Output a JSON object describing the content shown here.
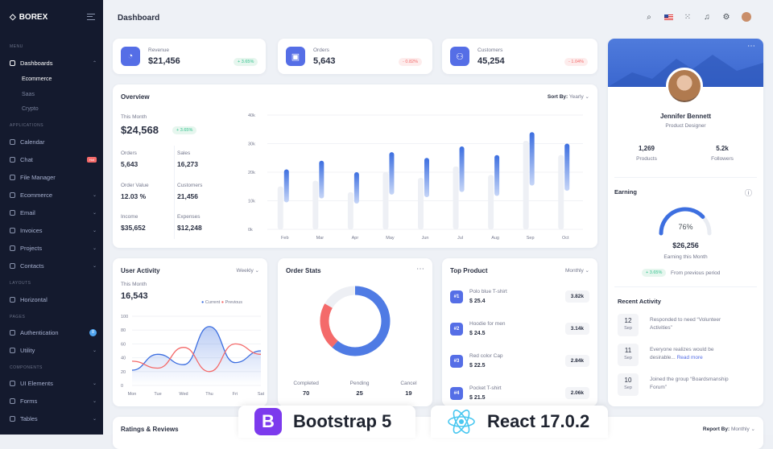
{
  "brand": "BOREX",
  "page_title": "Dashboard",
  "sidebar": {
    "sections": [
      "MENU",
      "APPLICATIONS",
      "LAYOUTS",
      "PAGES",
      "COMPONENTS"
    ],
    "dashboards": "Dashboards",
    "subitems": [
      "Ecommerce",
      "Saas",
      "Crypto"
    ],
    "apps": [
      "Calendar",
      "Chat",
      "File Manager",
      "Ecommerce",
      "Email",
      "Invoices",
      "Projects",
      "Contacts"
    ],
    "chat_badge": "Hot",
    "layout": "Horizontal",
    "pages": [
      "Authentication",
      "Utility"
    ],
    "auth_badge": "8",
    "components": [
      "UI Elements",
      "Forms",
      "Tables"
    ]
  },
  "stats": [
    {
      "label": "Revenue",
      "value": "$21,456",
      "change": "+ 3.65%"
    },
    {
      "label": "Orders",
      "value": "5,643",
      "change": "- 0.82%"
    },
    {
      "label": "Customers",
      "value": "45,254",
      "change": "- 1.04%"
    }
  ],
  "overview": {
    "title": "Overview",
    "sort_label": "Sort By:",
    "sort_value": "Yearly",
    "this_month_label": "This Month",
    "this_month_value": "$24,568",
    "change": "+ 3.65%",
    "metrics": [
      {
        "label": "Orders",
        "value": "5,643"
      },
      {
        "label": "Sales",
        "value": "16,273"
      },
      {
        "label": "Order Value",
        "value": "12.03 %"
      },
      {
        "label": "Customers",
        "value": "21,456"
      },
      {
        "label": "Income",
        "value": "$35,652"
      },
      {
        "label": "Expenses",
        "value": "$12,248"
      }
    ]
  },
  "chart_data": [
    {
      "type": "bar",
      "categories": [
        "Feb",
        "Mar",
        "Apr",
        "May",
        "Jun",
        "Jul",
        "Aug",
        "Sep",
        "Oct"
      ],
      "yticks": [
        "40k",
        "30k",
        "20k",
        "10k",
        "0k"
      ],
      "ylim": [
        0,
        40000
      ],
      "series": [
        {
          "values": [
            21000,
            24000,
            20000,
            27000,
            25000,
            29000,
            26000,
            34000,
            30000
          ]
        },
        {
          "values": [
            15000,
            17000,
            13000,
            20000,
            18000,
            22000,
            19000,
            31000,
            26000
          ]
        }
      ]
    },
    {
      "type": "line",
      "categories": [
        "Mon",
        "Tue",
        "Wed",
        "Thu",
        "Fri",
        "Sat"
      ],
      "yticks": [
        "100",
        "80",
        "60",
        "40",
        "20",
        "0"
      ],
      "ylim": [
        0,
        100
      ],
      "series": [
        {
          "name": "Current",
          "values": [
            22,
            45,
            30,
            85,
            33,
            50
          ]
        },
        {
          "name": "Previous",
          "values": [
            35,
            25,
            55,
            20,
            60,
            45
          ]
        }
      ]
    },
    {
      "type": "pie",
      "categories": [
        "Completed",
        "Pending",
        "Cancel"
      ],
      "values": [
        70,
        25,
        19
      ]
    }
  ],
  "user_activity": {
    "title": "User Activity",
    "period": "Weekly",
    "this_month_label": "This Month",
    "this_month_value": "16,543",
    "legend": [
      "Current",
      "Previous"
    ]
  },
  "order_stats": {
    "title": "Order Stats",
    "labels": [
      "Completed",
      "Pending",
      "Cancel"
    ],
    "values": [
      "70",
      "25",
      "19"
    ]
  },
  "top_product": {
    "title": "Top Product",
    "period": "Monthly",
    "items": [
      {
        "rank": "#1",
        "name": "Polo blue T-shirt",
        "price": "$ 25.4",
        "count": "3.82k"
      },
      {
        "rank": "#2",
        "name": "Hoodie for men",
        "price": "$ 24.5",
        "count": "3.14k"
      },
      {
        "rank": "#3",
        "name": "Red color Cap",
        "price": "$ 22.5",
        "count": "2.84k"
      },
      {
        "rank": "#4",
        "name": "Pocket T-shirt",
        "price": "$ 21.5",
        "count": "2.06k"
      }
    ]
  },
  "profile": {
    "name": "Jennifer Bennett",
    "role": "Product Designer",
    "products_value": "1,269",
    "products_label": "Products",
    "followers_value": "5.2k",
    "followers_label": "Followers"
  },
  "earning": {
    "title": "Earning",
    "percent": "76%",
    "percent_value": 76,
    "value": "$26,256",
    "subtitle": "Earning this Month",
    "change": "+ 3.65%",
    "change_text": "From previous period"
  },
  "recent_activity": {
    "title": "Recent Activity",
    "items": [
      {
        "day": "12",
        "month": "Sep",
        "text": "Responded to need “Volunteer Activities”"
      },
      {
        "day": "11",
        "month": "Sep",
        "text": "Everyone realizes would be desirable...",
        "link": "Read more"
      },
      {
        "day": "10",
        "month": "Sep",
        "text": "Joined the group “Boardsmanship Forum”"
      }
    ]
  },
  "ratings": {
    "title": "Ratings & Reviews",
    "report_label": "Report By:",
    "report_value": "Monthly"
  },
  "banners": [
    "Bootstrap 5",
    "React 17.0.2"
  ],
  "colors": {
    "primary": "#556ee6",
    "success": "#34c38f",
    "danger": "#f46a6a",
    "sidebar": "#141a2e"
  }
}
